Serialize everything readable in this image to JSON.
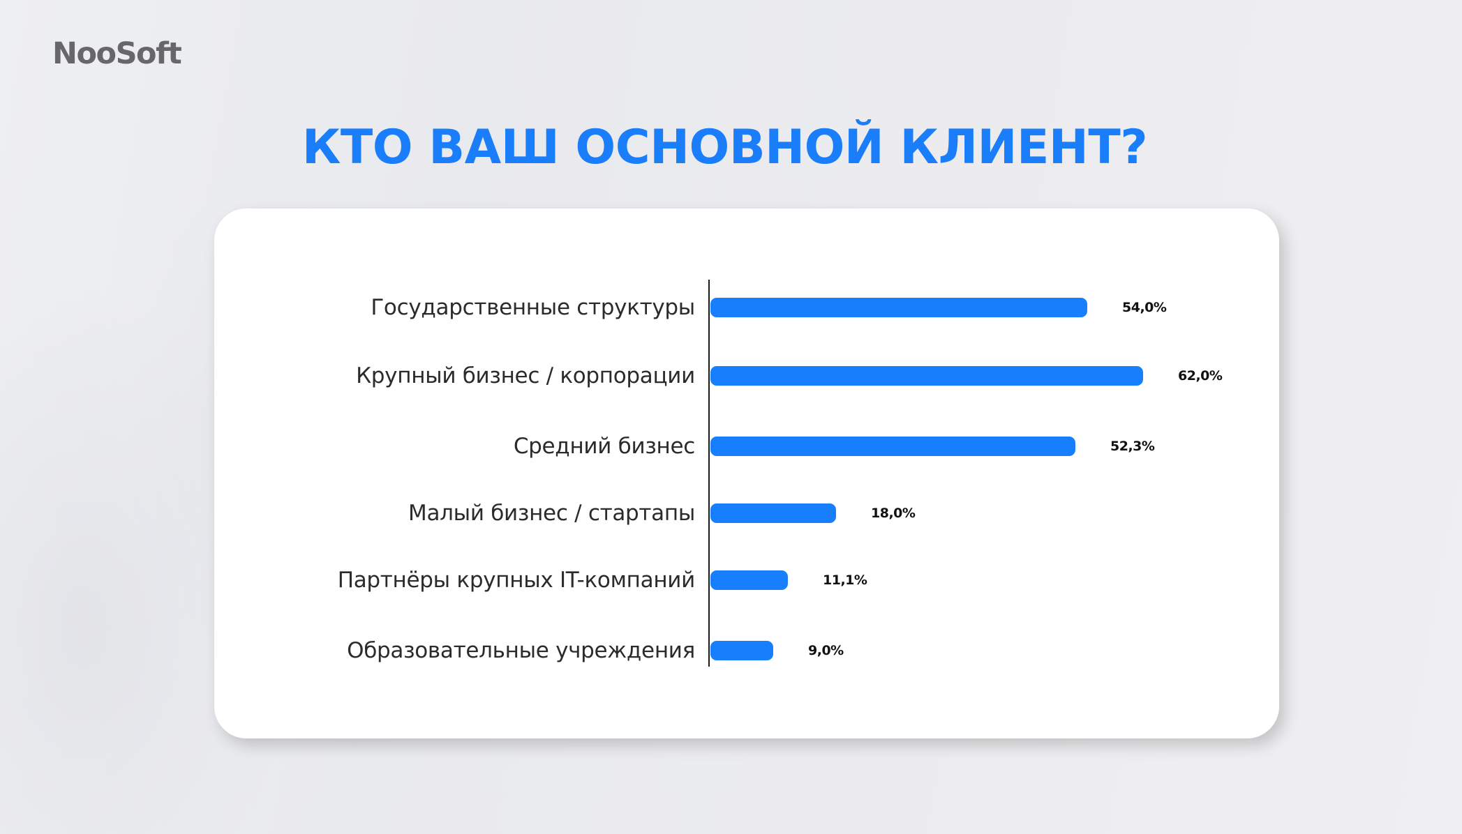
{
  "brand": {
    "logo_text": "NooSoft"
  },
  "header": {
    "title": "КТО ВАШ ОСНОВНОЙ КЛИЕНТ?"
  },
  "colors": {
    "accent": "#1a7dfa",
    "bar": "#187ffc",
    "logo": "#67676b",
    "background": "#ecedf0"
  },
  "chart_data": {
    "type": "bar",
    "orientation": "horizontal",
    "title": "КТО ВАШ ОСНОВНОЙ КЛИЕНТ?",
    "xlabel": "",
    "ylabel": "",
    "unit": "%",
    "grid": false,
    "legend": null,
    "categories": [
      "Государственные структуры",
      "Крупный бизнес / корпорации",
      "Средний бизнес",
      "Малый бизнес / стартапы",
      "Партнёры крупных IT-компаний",
      "Образовательные учреждения"
    ],
    "values": [
      54.0,
      62.0,
      52.3,
      18.0,
      11.1,
      9.0
    ],
    "value_labels": [
      "54,0%",
      "62,0%",
      "52,3%",
      "18,0%",
      "11,1%",
      "9,0%"
    ]
  },
  "rows": [
    {
      "label": "Государственные структуры",
      "value": 54.0,
      "value_label": "54,0%"
    },
    {
      "label": "Крупный бизнес / корпорации",
      "value": 62.0,
      "value_label": "62,0%"
    },
    {
      "label": "Средний бизнес",
      "value": 52.3,
      "value_label": "52,3%"
    },
    {
      "label": "Малый бизнес / стартапы",
      "value": 18.0,
      "value_label": "18,0%"
    },
    {
      "label": "Партнёры крупных IT-компаний",
      "value": 11.1,
      "value_label": "11,1%"
    },
    {
      "label": "Образовательные учреждения",
      "value": 9.0,
      "value_label": "9,0%"
    }
  ]
}
